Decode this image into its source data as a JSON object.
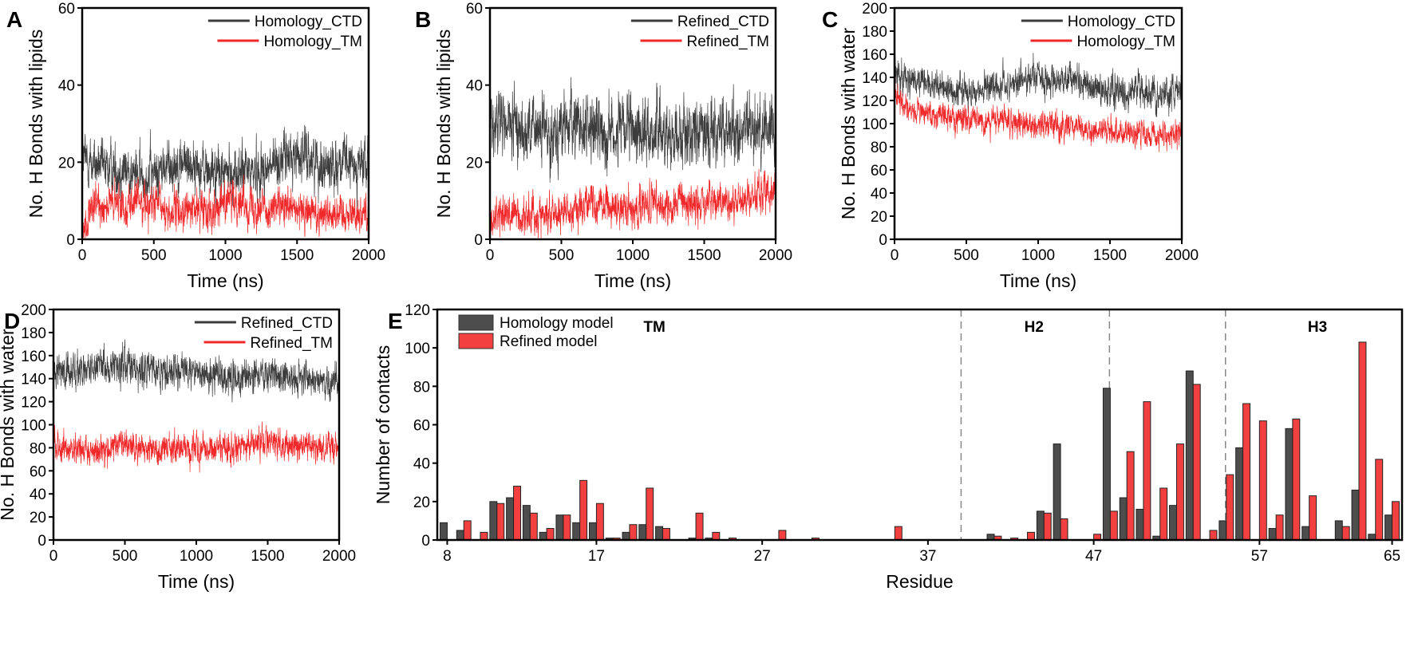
{
  "chart_data": [
    {
      "panel": "A",
      "type": "line",
      "xlabel": "Time (ns)",
      "ylabel": "No. H Bonds with lipids",
      "xlim": [
        0,
        2000
      ],
      "ylim": [
        0,
        60
      ],
      "xticks": [
        0,
        500,
        1000,
        1500,
        2000
      ],
      "yticks": [
        0,
        20,
        40,
        60
      ],
      "legend_position": "top-right",
      "profile_x": [
        0,
        100,
        200,
        300,
        400,
        500,
        600,
        700,
        800,
        900,
        1000,
        1100,
        1200,
        1300,
        1400,
        1500,
        1600,
        1700,
        1800,
        1900,
        2000
      ],
      "series": [
        {
          "name": "Homology_CTD",
          "color": "#3c3c3c",
          "noise": 3.5,
          "values": [
            21,
            19,
            18,
            18,
            16,
            17,
            19,
            20,
            19,
            17,
            17,
            17,
            18,
            18,
            21,
            22,
            21,
            19,
            20,
            19,
            19
          ]
        },
        {
          "name": "Homology_TM",
          "color": "#f0282a",
          "noise": 2.6,
          "values": [
            2,
            9,
            9,
            9,
            10,
            9,
            7,
            7,
            8,
            8,
            10,
            10,
            9,
            8,
            8,
            7,
            7,
            7,
            7,
            7,
            7
          ]
        }
      ]
    },
    {
      "panel": "B",
      "type": "line",
      "xlabel": "Time (ns)",
      "ylabel": "No. H Bonds with lipids",
      "xlim": [
        0,
        2000
      ],
      "ylim": [
        0,
        60
      ],
      "xticks": [
        0,
        500,
        1000,
        1500,
        2000
      ],
      "yticks": [
        0,
        20,
        40,
        60
      ],
      "legend_position": "top-right",
      "profile_x": [
        0,
        100,
        200,
        300,
        400,
        500,
        600,
        700,
        800,
        900,
        1000,
        1100,
        1200,
        1300,
        1400,
        1500,
        1600,
        1700,
        1800,
        1900,
        2000
      ],
      "series": [
        {
          "name": "Refined_CTD",
          "color": "#3c3c3c",
          "noise": 4.5,
          "values": [
            30,
            30,
            29,
            28,
            28,
            29,
            30,
            29,
            28,
            28,
            28,
            28,
            28,
            27,
            28,
            28,
            28,
            27,
            28,
            29,
            30
          ]
        },
        {
          "name": "Refined_TM",
          "color": "#f0282a",
          "noise": 2.6,
          "values": [
            4,
            7,
            6,
            6,
            7,
            7,
            8,
            10,
            9,
            8,
            8,
            9,
            9,
            9,
            9,
            9,
            10,
            9,
            10,
            12,
            14
          ]
        }
      ]
    },
    {
      "panel": "C",
      "type": "line",
      "xlabel": "Time (ns)",
      "ylabel": "No. H Bonds with water",
      "xlim": [
        0,
        2000
      ],
      "ylim": [
        0,
        200
      ],
      "xticks": [
        0,
        500,
        1000,
        1500,
        2000
      ],
      "yticks": [
        0,
        20,
        40,
        60,
        80,
        100,
        120,
        140,
        160,
        180,
        200
      ],
      "legend_position": "top-right",
      "profile_x": [
        0,
        100,
        200,
        300,
        400,
        500,
        600,
        700,
        800,
        900,
        1000,
        1100,
        1200,
        1300,
        1400,
        1500,
        1600,
        1700,
        1800,
        1900,
        2000
      ],
      "series": [
        {
          "name": "Homology_CTD",
          "color": "#3c3c3c",
          "noise": 7,
          "values": [
            148,
            136,
            134,
            133,
            130,
            128,
            130,
            132,
            134,
            138,
            140,
            136,
            140,
            135,
            132,
            128,
            128,
            127,
            126,
            126,
            128
          ]
        },
        {
          "name": "Homology_TM",
          "color": "#f0282a",
          "noise": 6,
          "values": [
            128,
            112,
            110,
            108,
            106,
            104,
            103,
            102,
            100,
            100,
            99,
            98,
            96,
            96,
            94,
            93,
            92,
            92,
            91,
            90,
            92
          ]
        }
      ]
    },
    {
      "panel": "D",
      "type": "line",
      "xlabel": "Time (ns)",
      "ylabel": "No. H Bonds with water",
      "xlim": [
        0,
        2000
      ],
      "ylim": [
        0,
        200
      ],
      "xticks": [
        0,
        500,
        1000,
        1500,
        2000
      ],
      "yticks": [
        0,
        20,
        40,
        60,
        80,
        100,
        120,
        140,
        160,
        180,
        200
      ],
      "legend_position": "top-right",
      "profile_x": [
        0,
        100,
        200,
        300,
        400,
        500,
        600,
        700,
        800,
        900,
        1000,
        1100,
        1200,
        1300,
        1400,
        1500,
        1600,
        1700,
        1800,
        1900,
        2000
      ],
      "series": [
        {
          "name": "Refined_CTD",
          "color": "#3c3c3c",
          "noise": 8,
          "values": [
            145,
            146,
            148,
            150,
            149,
            150,
            148,
            147,
            145,
            146,
            146,
            142,
            141,
            140,
            140,
            142,
            141,
            140,
            140,
            140,
            139
          ]
        },
        {
          "name": "Refined_TM",
          "color": "#f0282a",
          "noise": 6.5,
          "values": [
            85,
            78,
            78,
            80,
            80,
            82,
            80,
            79,
            80,
            80,
            78,
            79,
            80,
            80,
            82,
            86,
            84,
            82,
            80,
            80,
            78
          ]
        }
      ]
    },
    {
      "panel": "E",
      "type": "bar",
      "xlabel": "Residue",
      "ylabel": "Number of contacts",
      "xlim": [
        7.4,
        65.6
      ],
      "ylim": [
        0,
        120
      ],
      "xticks": [
        8,
        17,
        27,
        37,
        47,
        57,
        65
      ],
      "yticks": [
        0,
        20,
        40,
        60,
        80,
        100,
        120
      ],
      "legend_position": "top-left",
      "regions": [
        {
          "label": "TM",
          "at": 20.5
        },
        {
          "label": "H2",
          "at": 43.4
        },
        {
          "label": "H3",
          "at": 60.5
        }
      ],
      "dividers": [
        39,
        47.95,
        54.95
      ],
      "categories": [
        8,
        9,
        10,
        11,
        12,
        13,
        14,
        15,
        16,
        17,
        18,
        19,
        20,
        21,
        22,
        23,
        24,
        25,
        26,
        27,
        28,
        29,
        30,
        31,
        32,
        33,
        34,
        35,
        36,
        37,
        38,
        39,
        40,
        41,
        42,
        43,
        44,
        45,
        46,
        47,
        48,
        49,
        50,
        51,
        52,
        53,
        54,
        55,
        56,
        57,
        58,
        59,
        60,
        61,
        62,
        63,
        64,
        65
      ],
      "series": [
        {
          "name": "Homology model",
          "color": "#4d4d4d",
          "values": [
            9,
            5,
            0,
            20,
            22,
            18,
            4,
            13,
            9,
            9,
            1,
            4,
            8,
            7,
            0,
            1,
            1,
            0,
            0,
            0,
            0,
            0,
            0,
            0,
            0,
            0,
            0,
            0,
            0,
            0,
            0,
            0,
            0,
            3,
            0,
            0,
            15,
            50,
            0,
            0,
            79,
            22,
            16,
            2,
            18,
            88,
            0,
            10,
            48,
            0,
            6,
            58,
            7,
            0,
            10,
            26,
            3,
            13
          ]
        },
        {
          "name": "Refined model",
          "color": "#f24040",
          "values": [
            0,
            10,
            4,
            19,
            28,
            14,
            6,
            13,
            31,
            19,
            1,
            8,
            27,
            6,
            0,
            14,
            4,
            1,
            0,
            0,
            5,
            0,
            1,
            0,
            0,
            0,
            0,
            7,
            0,
            0,
            0,
            0,
            0,
            2,
            1,
            4,
            14,
            11,
            0,
            3,
            15,
            46,
            72,
            27,
            50,
            81,
            5,
            34,
            71,
            62,
            13,
            63,
            23,
            0,
            7,
            103,
            42,
            20
          ]
        }
      ]
    }
  ]
}
